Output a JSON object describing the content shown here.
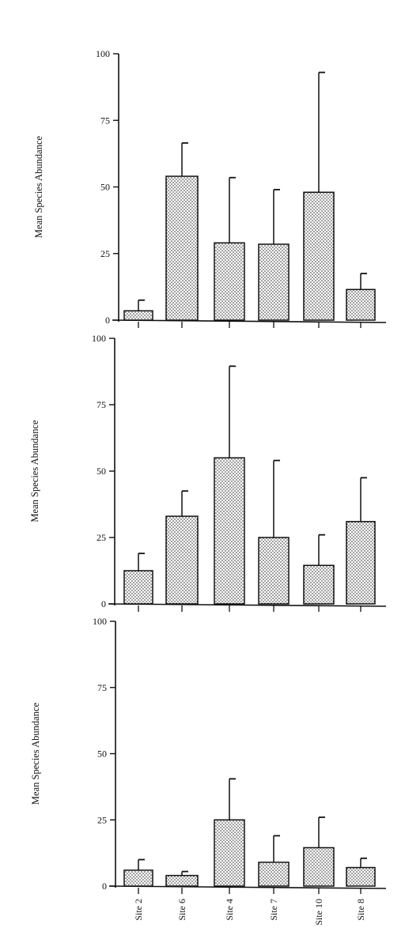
{
  "chart_data": [
    {
      "type": "bar",
      "title": "",
      "xlabel": "",
      "ylabel": "Mean Species Abundance",
      "ylim": [
        0,
        100
      ],
      "yticks": [
        0,
        25,
        50,
        75,
        100
      ],
      "categories": [
        "Site 2",
        "Site 6",
        "Site 4",
        "Site 7",
        "Site 10",
        "Site 8"
      ],
      "show_category_labels": false,
      "values": [
        3.5,
        54,
        29,
        28.5,
        48,
        11.5
      ],
      "error_upper": [
        7.5,
        66.5,
        53.5,
        49,
        93,
        17.5
      ],
      "bar_fill": "dotted"
    },
    {
      "type": "bar",
      "title": "",
      "xlabel": "",
      "ylabel": "Mean Species Abundance",
      "ylim": [
        0,
        100
      ],
      "yticks": [
        0,
        25,
        50,
        75,
        100
      ],
      "categories": [
        "Site 2",
        "Site 6",
        "Site 4",
        "Site 7",
        "Site 10",
        "Site 8"
      ],
      "show_category_labels": false,
      "values": [
        12.5,
        33,
        55,
        25,
        14.5,
        31
      ],
      "error_upper": [
        19,
        42.5,
        89.5,
        54,
        26,
        47.5
      ],
      "bar_fill": "dotted"
    },
    {
      "type": "bar",
      "title": "",
      "xlabel": "",
      "ylabel": "Mean Species Abundance",
      "ylim": [
        0,
        100
      ],
      "yticks": [
        0,
        25,
        50,
        75,
        100
      ],
      "categories": [
        "Site 2",
        "Site 6",
        "Site 4",
        "Site 7",
        "Site 10",
        "Site 8"
      ],
      "show_category_labels": true,
      "values": [
        6,
        4,
        25,
        9,
        14.5,
        7
      ],
      "error_upper": [
        10,
        5.5,
        40.5,
        19,
        26,
        10.5
      ],
      "bar_fill": "dotted"
    }
  ]
}
